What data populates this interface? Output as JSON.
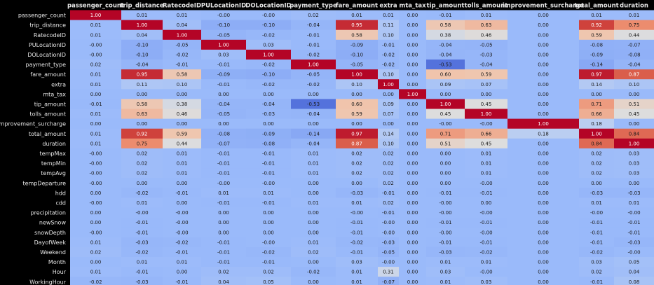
{
  "chart_data": {
    "type": "heatmap",
    "columns": [
      "passenger_count",
      "trip_distance",
      "RatecodeID",
      "PULocationID",
      "DOLocationID",
      "payment_type",
      "fare_amount",
      "extra",
      "mta_tax",
      "tip_amount",
      "tolls_amount",
      "improvement_surcharge",
      "total_amount",
      "duration"
    ],
    "rows": [
      "passenger_count",
      "trip_distance",
      "RatecodeID",
      "PULocationID",
      "DOLocationID",
      "payment_type",
      "fare_amount",
      "extra",
      "mta_tax",
      "tip_amount",
      "tolls_amount",
      "improvement_surcharge",
      "total_amount",
      "duration",
      "tempMax",
      "tempMin",
      "tempAvg",
      "tempDeparture",
      "hdd",
      "cdd",
      "precipitation",
      "newSnow",
      "snowDepth",
      "DayofWeek",
      "Weekend",
      "Month",
      "Hour",
      "WorkingHour"
    ],
    "values": [
      [
        "1.00",
        "0.01",
        "0.01",
        "-0.00",
        "-0.00",
        "0.02",
        "0.01",
        "0.01",
        "0.00",
        "-0.01",
        "0.01",
        "0.00",
        "0.01",
        "0.01"
      ],
      [
        "0.01",
        "1.00",
        "0.04",
        "-0.10",
        "-0.10",
        "-0.04",
        "0.95",
        "0.11",
        "0.00",
        "0.58",
        "0.63",
        "0.00",
        "0.92",
        "0.75"
      ],
      [
        "0.01",
        "0.04",
        "1.00",
        "-0.05",
        "-0.02",
        "-0.01",
        "0.58",
        "0.10",
        "0.00",
        "0.38",
        "0.46",
        "0.00",
        "0.59",
        "0.44"
      ],
      [
        "-0.00",
        "-0.10",
        "-0.05",
        "1.00",
        "0.03",
        "-0.01",
        "-0.09",
        "-0.01",
        "0.00",
        "-0.04",
        "-0.05",
        "0.00",
        "-0.08",
        "-0.07"
      ],
      [
        "-0.00",
        "-0.10",
        "-0.02",
        "0.03",
        "1.00",
        "-0.02",
        "-0.10",
        "-0.02",
        "0.00",
        "-0.04",
        "-0.03",
        "0.00",
        "-0.09",
        "-0.08"
      ],
      [
        "0.02",
        "-0.04",
        "-0.01",
        "-0.01",
        "-0.02",
        "1.00",
        "-0.05",
        "-0.02",
        "0.00",
        "-0.53",
        "-0.04",
        "0.00",
        "-0.14",
        "-0.04"
      ],
      [
        "0.01",
        "0.95",
        "0.58",
        "-0.09",
        "-0.10",
        "-0.05",
        "1.00",
        "0.10",
        "0.00",
        "0.60",
        "0.59",
        "0.00",
        "0.97",
        "0.87"
      ],
      [
        "0.01",
        "0.11",
        "0.10",
        "-0.01",
        "-0.02",
        "-0.02",
        "0.10",
        "1.00",
        "0.00",
        "0.09",
        "0.07",
        "0.00",
        "0.14",
        "0.10"
      ],
      [
        "0.00",
        "0.00",
        "0.00",
        "0.00",
        "0.00",
        "0.00",
        "0.00",
        "0.00",
        "1.00",
        "0.00",
        "0.00",
        "0.00",
        "0.00",
        "0.00"
      ],
      [
        "-0.01",
        "0.58",
        "0.38",
        "-0.04",
        "-0.04",
        "-0.53",
        "0.60",
        "0.09",
        "0.00",
        "1.00",
        "0.45",
        "0.00",
        "0.71",
        "0.51"
      ],
      [
        "0.01",
        "0.63",
        "0.46",
        "-0.05",
        "-0.03",
        "-0.04",
        "0.59",
        "0.07",
        "0.00",
        "0.45",
        "1.00",
        "0.00",
        "0.66",
        "0.45"
      ],
      [
        "0.00",
        "0.00",
        "0.00",
        "0.00",
        "0.00",
        "0.00",
        "0.00",
        "0.00",
        "0.00",
        "-0.00",
        "-0.00",
        "1.00",
        "0.18",
        "0.00"
      ],
      [
        "0.01",
        "0.92",
        "0.59",
        "-0.08",
        "-0.09",
        "-0.14",
        "0.97",
        "0.14",
        "0.00",
        "0.71",
        "0.66",
        "0.18",
        "1.00",
        "0.84"
      ],
      [
        "0.01",
        "0.75",
        "0.44",
        "-0.07",
        "-0.08",
        "-0.04",
        "0.87",
        "0.10",
        "0.00",
        "0.51",
        "0.45",
        "0.00",
        "0.84",
        "1.00"
      ],
      [
        "-0.00",
        "0.02",
        "0.01",
        "-0.01",
        "-0.01",
        "0.01",
        "0.02",
        "0.02",
        "0.00",
        "0.00",
        "0.01",
        "0.00",
        "0.02",
        "0.03"
      ],
      [
        "-0.00",
        "0.02",
        "0.01",
        "-0.01",
        "-0.01",
        "0.01",
        "0.02",
        "0.02",
        "0.00",
        "0.00",
        "0.01",
        "0.00",
        "0.02",
        "0.03"
      ],
      [
        "-0.00",
        "0.02",
        "0.01",
        "-0.01",
        "-0.01",
        "0.01",
        "0.02",
        "0.02",
        "0.00",
        "0.00",
        "0.01",
        "0.00",
        "0.02",
        "0.03"
      ],
      [
        "-0.00",
        "0.00",
        "0.00",
        "-0.00",
        "-0.00",
        "0.00",
        "0.00",
        "0.02",
        "0.00",
        "0.00",
        "-0.00",
        "0.00",
        "0.00",
        "0.00"
      ],
      [
        "0.00",
        "-0.02",
        "-0.01",
        "0.01",
        "0.01",
        "0.00",
        "-0.03",
        "-0.01",
        "0.00",
        "-0.01",
        "-0.01",
        "0.00",
        "-0.03",
        "-0.03"
      ],
      [
        "-0.00",
        "0.01",
        "0.00",
        "-0.01",
        "-0.01",
        "0.01",
        "0.01",
        "0.02",
        "0.00",
        "-0.00",
        "0.00",
        "0.00",
        "0.01",
        "0.01"
      ],
      [
        "0.00",
        "-0.00",
        "-0.00",
        "0.00",
        "0.00",
        "0.00",
        "-0.00",
        "-0.01",
        "0.00",
        "-0.00",
        "-0.00",
        "0.00",
        "-0.00",
        "-0.00"
      ],
      [
        "0.00",
        "-0.01",
        "-0.00",
        "0.00",
        "0.00",
        "0.00",
        "-0.01",
        "-0.00",
        "0.00",
        "-0.01",
        "-0.01",
        "0.00",
        "-0.01",
        "-0.01"
      ],
      [
        "-0.00",
        "-0.01",
        "-0.00",
        "0.00",
        "0.00",
        "0.00",
        "-0.01",
        "-0.00",
        "0.00",
        "-0.00",
        "-0.00",
        "0.00",
        "-0.01",
        "-0.01"
      ],
      [
        "0.01",
        "-0.03",
        "-0.02",
        "-0.01",
        "-0.00",
        "0.01",
        "-0.02",
        "-0.03",
        "0.00",
        "-0.01",
        "-0.01",
        "0.00",
        "-0.01",
        "-0.03"
      ],
      [
        "0.02",
        "-0.02",
        "-0.01",
        "-0.01",
        "-0.02",
        "0.02",
        "-0.01",
        "-0.05",
        "0.00",
        "-0.03",
        "-0.02",
        "0.00",
        "-0.02",
        "-0.00"
      ],
      [
        "0.00",
        "0.01",
        "0.01",
        "-0.01",
        "-0.01",
        "0.00",
        "0.03",
        "-0.00",
        "0.00",
        "0.01",
        "0.01",
        "0.00",
        "0.03",
        "0.05"
      ],
      [
        "0.01",
        "-0.01",
        "0.00",
        "0.02",
        "0.02",
        "-0.02",
        "0.01",
        "0.31",
        "0.00",
        "0.03",
        "-0.00",
        "0.00",
        "0.02",
        "0.04"
      ],
      [
        "-0.02",
        "-0.03",
        "-0.01",
        "0.04",
        "0.05",
        "0.00",
        "0.01",
        "-0.07",
        "0.00",
        "0.01",
        "0.03",
        "0.00",
        "-0.01",
        "0.08"
      ]
    ],
    "vmin": -0.6,
    "vmax": 1.0,
    "colormap": "coolwarm",
    "colors": {
      "low": "#3b4cc0",
      "mid": "#dddddd",
      "high": "#b40426",
      "background": "#000000",
      "label": "#e6e6e6"
    }
  }
}
